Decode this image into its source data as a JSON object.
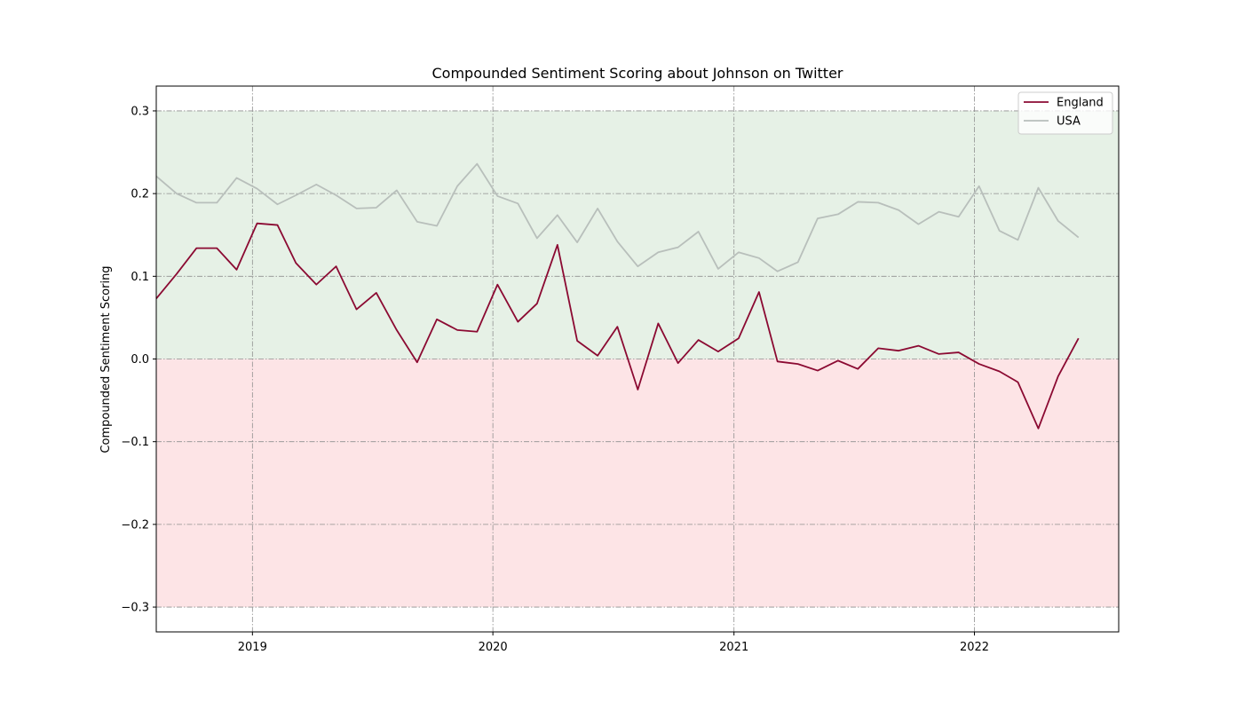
{
  "chart_data": {
    "type": "line",
    "title": "Compounded Sentiment Scoring about Johnson on Twitter",
    "xlabel": "",
    "ylabel": "Compounded Sentiment Scoring",
    "xlim": [
      "2018-08-08",
      "2022-08-08"
    ],
    "ylim": [
      -0.33,
      0.33
    ],
    "yticks": [
      -0.3,
      -0.2,
      -0.1,
      0.0,
      0.1,
      0.2,
      0.3
    ],
    "ytick_labels": [
      "−0.3",
      "−0.2",
      "−0.1",
      "0.0",
      "0.1",
      "0.2",
      "0.3"
    ],
    "xticks": [
      "2019-01-01",
      "2020-01-01",
      "2021-01-01",
      "2022-01-01"
    ],
    "xtick_labels": [
      "2019",
      "2020",
      "2021",
      "2022"
    ],
    "grid": true,
    "legend": "top-right",
    "background_bands": [
      {
        "from": 0.0,
        "to": 0.3,
        "color": "#e6f1e6"
      },
      {
        "from": -0.3,
        "to": 0.0,
        "color": "#fde4e6"
      }
    ],
    "x": [
      "2018-08-08",
      "2018-09-08",
      "2018-10-08",
      "2018-11-08",
      "2018-12-08",
      "2019-01-08",
      "2019-02-08",
      "2019-03-08",
      "2019-04-08",
      "2019-05-08",
      "2019-06-08",
      "2019-07-08",
      "2019-08-08",
      "2019-09-08",
      "2019-10-08",
      "2019-11-08",
      "2019-12-08",
      "2020-01-08",
      "2020-02-08",
      "2020-03-08",
      "2020-04-08",
      "2020-05-08",
      "2020-06-08",
      "2020-07-08",
      "2020-08-08",
      "2020-09-08",
      "2020-10-08",
      "2020-11-08",
      "2020-12-08",
      "2021-01-08",
      "2021-02-08",
      "2021-03-08",
      "2021-04-08",
      "2021-05-08",
      "2021-06-08",
      "2021-07-08",
      "2021-08-08",
      "2021-09-08",
      "2021-10-08",
      "2021-11-08",
      "2021-12-08",
      "2022-01-08",
      "2022-02-08",
      "2022-03-08",
      "2022-04-08",
      "2022-05-08",
      "2022-06-08"
    ],
    "series": [
      {
        "name": "England",
        "color": "#8b0a32",
        "values": [
          0.073,
          0.103,
          0.134,
          0.134,
          0.108,
          0.164,
          0.162,
          0.116,
          0.09,
          0.112,
          0.06,
          0.08,
          0.035,
          -0.004,
          0.048,
          0.035,
          0.033,
          0.09,
          0.045,
          0.067,
          0.138,
          0.022,
          0.004,
          0.039,
          -0.037,
          0.043,
          -0.005,
          0.023,
          0.009,
          0.025,
          0.081,
          -0.003,
          -0.006,
          -0.014,
          -0.002,
          -0.012,
          0.013,
          0.01,
          0.016,
          0.006,
          0.008,
          -0.006,
          -0.015,
          -0.028,
          -0.084,
          -0.021,
          0.025
        ]
      },
      {
        "name": "USA",
        "color": "#b8bfbb",
        "values": [
          0.221,
          0.2,
          0.189,
          0.189,
          0.219,
          0.206,
          0.187,
          0.198,
          0.211,
          0.198,
          0.182,
          0.183,
          0.204,
          0.166,
          0.161,
          0.209,
          0.236,
          0.197,
          0.188,
          0.146,
          0.174,
          0.141,
          0.182,
          0.142,
          0.112,
          0.129,
          0.135,
          0.154,
          0.109,
          0.129,
          0.122,
          0.106,
          0.117,
          0.17,
          0.175,
          0.19,
          0.189,
          0.18,
          0.163,
          0.178,
          0.172,
          0.209,
          0.155,
          0.144,
          0.207,
          0.167,
          0.147
        ]
      }
    ]
  }
}
